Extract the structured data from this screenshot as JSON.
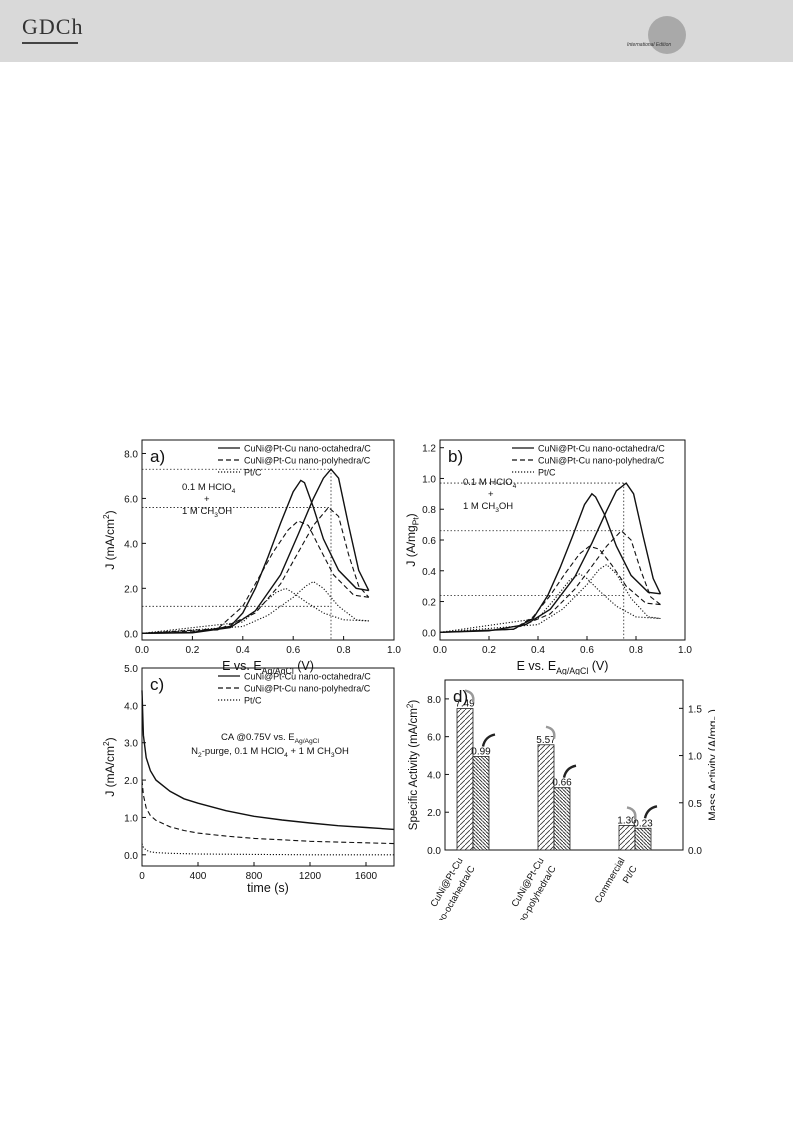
{
  "header": {
    "logo_text": "GDCh",
    "edition_text": "International Edition"
  },
  "chart_data": [
    {
      "type": "line",
      "panel_label": "a)",
      "xlabel": "E vs. E",
      "xlabel_sub": "Ag/AgCl",
      "xlabel_unit": "(V)",
      "ylabel": "J (mA/cm",
      "ylabel_sup": "2",
      "ylabel_end": ")",
      "xlim": [
        0.0,
        1.0
      ],
      "ylim": [
        -0.3,
        8.6
      ],
      "xticks": [
        "0.0",
        "0.2",
        "0.4",
        "0.6",
        "0.8",
        "1.0"
      ],
      "yticks": [
        "0.0",
        "2.0",
        "4.0",
        "6.0",
        "8.0"
      ],
      "annotation_lines": [
        "0.1 M HClO",
        "+",
        "1 M CH"
      ],
      "legend": [
        "CuNi@Pt-Cu nano-octahedra/C",
        "CuNi@Pt-Cu nano-polyhedra/C",
        "Pt/C"
      ],
      "ref_lines": {
        "y": [
          7.3,
          5.6,
          1.2
        ],
        "x": 0.75
      },
      "series": [
        {
          "name": "CuNi@Pt-Cu nano-octahedra/C",
          "style": "solid",
          "forward": [
            [
              0.0,
              0.0
            ],
            [
              0.2,
              0.02
            ],
            [
              0.35,
              0.25
            ],
            [
              0.45,
              1.0
            ],
            [
              0.55,
              2.6
            ],
            [
              0.62,
              4.4
            ],
            [
              0.68,
              6.0
            ],
            [
              0.72,
              6.9
            ],
            [
              0.75,
              7.3
            ],
            [
              0.78,
              6.9
            ],
            [
              0.82,
              4.8
            ],
            [
              0.86,
              2.8
            ],
            [
              0.9,
              1.9
            ]
          ],
          "backward": [
            [
              0.9,
              1.9
            ],
            [
              0.85,
              2.0
            ],
            [
              0.78,
              2.8
            ],
            [
              0.72,
              4.2
            ],
            [
              0.68,
              5.6
            ],
            [
              0.645,
              6.7
            ],
            [
              0.63,
              6.8
            ],
            [
              0.6,
              6.3
            ],
            [
              0.55,
              4.9
            ],
            [
              0.5,
              3.4
            ],
            [
              0.45,
              2.0
            ],
            [
              0.4,
              0.9
            ],
            [
              0.35,
              0.3
            ],
            [
              0.2,
              0.04
            ],
            [
              0.0,
              0.0
            ]
          ]
        },
        {
          "name": "CuNi@Pt-Cu nano-polyhedra/C",
          "style": "dashed",
          "forward": [
            [
              0.0,
              0.0
            ],
            [
              0.3,
              0.15
            ],
            [
              0.45,
              0.9
            ],
            [
              0.55,
              2.2
            ],
            [
              0.62,
              3.6
            ],
            [
              0.68,
              4.8
            ],
            [
              0.74,
              5.6
            ],
            [
              0.78,
              5.2
            ],
            [
              0.82,
              3.5
            ],
            [
              0.86,
              2.1
            ],
            [
              0.9,
              1.6
            ]
          ],
          "backward": [
            [
              0.9,
              1.6
            ],
            [
              0.84,
              1.7
            ],
            [
              0.76,
              2.6
            ],
            [
              0.7,
              3.9
            ],
            [
              0.66,
              4.8
            ],
            [
              0.62,
              5.0
            ],
            [
              0.58,
              4.6
            ],
            [
              0.52,
              3.6
            ],
            [
              0.46,
              2.4
            ],
            [
              0.4,
              1.2
            ],
            [
              0.3,
              0.2
            ],
            [
              0.0,
              0.0
            ]
          ]
        },
        {
          "name": "Pt/C",
          "style": "dotted",
          "forward": [
            [
              0.0,
              0.0
            ],
            [
              0.4,
              0.3
            ],
            [
              0.5,
              0.8
            ],
            [
              0.6,
              1.6
            ],
            [
              0.65,
              2.1
            ],
            [
              0.68,
              2.3
            ],
            [
              0.72,
              2.0
            ],
            [
              0.78,
              1.2
            ],
            [
              0.85,
              0.6
            ],
            [
              0.9,
              0.55
            ]
          ],
          "backward": [
            [
              0.9,
              0.55
            ],
            [
              0.8,
              0.6
            ],
            [
              0.72,
              0.9
            ],
            [
              0.65,
              1.4
            ],
            [
              0.6,
              1.8
            ],
            [
              0.57,
              2.0
            ],
            [
              0.53,
              1.8
            ],
            [
              0.47,
              1.2
            ],
            [
              0.4,
              0.5
            ],
            [
              0.0,
              0.0
            ]
          ]
        }
      ]
    },
    {
      "type": "line",
      "panel_label": "b)",
      "xlabel": "E vs. E",
      "xlabel_sub": "Ag/AgCl",
      "xlabel_unit": "(V)",
      "ylabel": "J (A/mg",
      "ylabel_sub": "Pt",
      "ylabel_end": ")",
      "xlim": [
        0.0,
        1.0
      ],
      "ylim": [
        -0.05,
        1.25
      ],
      "xticks": [
        "0.0",
        "0.2",
        "0.4",
        "0.6",
        "0.8",
        "1.0"
      ],
      "yticks": [
        "0.0",
        "0.2",
        "0.4",
        "0.6",
        "0.8",
        "1.0",
        "1.2"
      ],
      "annotation_lines": [
        "0.1 M HClO",
        "+",
        "1 M CH"
      ],
      "legend": [
        "CuNi@Pt-Cu nano-octahedra/C",
        "CuNi@Pt-Cu nano-polyhedra/C",
        "Pt/C"
      ],
      "ref_lines": {
        "y": [
          0.97,
          0.66,
          0.24
        ],
        "x": 0.75
      },
      "series": [
        {
          "name": "CuNi@Pt-Cu nano-octahedra/C",
          "style": "solid",
          "forward": [
            [
              0.0,
              0.0
            ],
            [
              0.2,
              0.01
            ],
            [
              0.35,
              0.05
            ],
            [
              0.45,
              0.15
            ],
            [
              0.55,
              0.36
            ],
            [
              0.62,
              0.58
            ],
            [
              0.68,
              0.79
            ],
            [
              0.72,
              0.92
            ],
            [
              0.76,
              0.97
            ],
            [
              0.79,
              0.9
            ],
            [
              0.83,
              0.62
            ],
            [
              0.87,
              0.35
            ],
            [
              0.9,
              0.25
            ]
          ],
          "backward": [
            [
              0.9,
              0.25
            ],
            [
              0.85,
              0.26
            ],
            [
              0.78,
              0.37
            ],
            [
              0.72,
              0.56
            ],
            [
              0.67,
              0.77
            ],
            [
              0.635,
              0.88
            ],
            [
              0.62,
              0.9
            ],
            [
              0.59,
              0.83
            ],
            [
              0.54,
              0.62
            ],
            [
              0.49,
              0.42
            ],
            [
              0.44,
              0.24
            ],
            [
              0.38,
              0.09
            ],
            [
              0.3,
              0.02
            ],
            [
              0.0,
              0.0
            ]
          ]
        },
        {
          "name": "CuNi@Pt-Cu nano-polyhedra/C",
          "style": "dashed",
          "forward": [
            [
              0.0,
              0.0
            ],
            [
              0.3,
              0.02
            ],
            [
              0.45,
              0.12
            ],
            [
              0.55,
              0.28
            ],
            [
              0.62,
              0.43
            ],
            [
              0.68,
              0.56
            ],
            [
              0.74,
              0.66
            ],
            [
              0.78,
              0.6
            ],
            [
              0.82,
              0.4
            ],
            [
              0.86,
              0.23
            ],
            [
              0.9,
              0.18
            ]
          ],
          "backward": [
            [
              0.9,
              0.18
            ],
            [
              0.84,
              0.19
            ],
            [
              0.76,
              0.3
            ],
            [
              0.7,
              0.44
            ],
            [
              0.65,
              0.54
            ],
            [
              0.61,
              0.56
            ],
            [
              0.57,
              0.51
            ],
            [
              0.51,
              0.38
            ],
            [
              0.45,
              0.24
            ],
            [
              0.38,
              0.1
            ],
            [
              0.3,
              0.02
            ],
            [
              0.0,
              0.0
            ]
          ]
        },
        {
          "name": "Pt/C",
          "style": "dotted",
          "forward": [
            [
              0.0,
              0.0
            ],
            [
              0.4,
              0.05
            ],
            [
              0.5,
              0.15
            ],
            [
              0.6,
              0.31
            ],
            [
              0.65,
              0.41
            ],
            [
              0.68,
              0.44
            ],
            [
              0.72,
              0.38
            ],
            [
              0.78,
              0.22
            ],
            [
              0.85,
              0.1
            ],
            [
              0.9,
              0.09
            ]
          ],
          "backward": [
            [
              0.9,
              0.09
            ],
            [
              0.8,
              0.1
            ],
            [
              0.72,
              0.17
            ],
            [
              0.65,
              0.27
            ],
            [
              0.6,
              0.35
            ],
            [
              0.57,
              0.38
            ],
            [
              0.53,
              0.34
            ],
            [
              0.47,
              0.22
            ],
            [
              0.4,
              0.09
            ],
            [
              0.0,
              0.0
            ]
          ]
        }
      ]
    },
    {
      "type": "line",
      "panel_label": "c)",
      "xlabel": "time (s)",
      "ylabel": "J (mA/cm",
      "ylabel_sup": "2",
      "ylabel_end": ")",
      "xlim": [
        0,
        1800
      ],
      "ylim": [
        -0.3,
        5.0
      ],
      "xticks": [
        "0",
        "400",
        "800",
        "1200",
        "1600"
      ],
      "yticks": [
        "0.0",
        "1.0",
        "2.0",
        "3.0",
        "4.0",
        "5.0"
      ],
      "annotation_lines": [
        "CA @0.75V vs.  E",
        "N",
        "-purge, 0.1 M HClO",
        "+ 1 M CH"
      ],
      "annotation_sub": "Ag/AgCl",
      "legend": [
        "CuNi@Pt-Cu nano-octahedra/C",
        "CuNi@Pt-Cu nano-polyhedra/C",
        "Pt/C"
      ],
      "series": [
        {
          "name": "CuNi@Pt-Cu nano-octahedra/C",
          "style": "solid",
          "points": [
            [
              0,
              4.4
            ],
            [
              10,
              3.2
            ],
            [
              30,
              2.6
            ],
            [
              60,
              2.25
            ],
            [
              100,
              2.0
            ],
            [
              200,
              1.7
            ],
            [
              300,
              1.5
            ],
            [
              400,
              1.38
            ],
            [
              600,
              1.18
            ],
            [
              800,
              1.03
            ],
            [
              1000,
              0.93
            ],
            [
              1200,
              0.85
            ],
            [
              1400,
              0.78
            ],
            [
              1600,
              0.73
            ],
            [
              1800,
              0.68
            ]
          ]
        },
        {
          "name": "CuNi@Pt-Cu nano-polyhedra/C",
          "style": "dashed",
          "points": [
            [
              0,
              2.0
            ],
            [
              10,
              1.6
            ],
            [
              30,
              1.25
            ],
            [
              60,
              1.05
            ],
            [
              100,
              0.92
            ],
            [
              200,
              0.75
            ],
            [
              300,
              0.65
            ],
            [
              400,
              0.58
            ],
            [
              600,
              0.5
            ],
            [
              800,
              0.44
            ],
            [
              1000,
              0.4
            ],
            [
              1200,
              0.36
            ],
            [
              1400,
              0.34
            ],
            [
              1600,
              0.32
            ],
            [
              1800,
              0.3
            ]
          ]
        },
        {
          "name": "Pt/C",
          "style": "dotted",
          "points": [
            [
              0,
              0.3
            ],
            [
              10,
              0.2
            ],
            [
              30,
              0.12
            ],
            [
              60,
              0.08
            ],
            [
              100,
              0.06
            ],
            [
              200,
              0.04
            ],
            [
              400,
              0.02
            ],
            [
              800,
              0.01
            ],
            [
              1200,
              0.0
            ],
            [
              1800,
              0.0
            ]
          ]
        }
      ]
    },
    {
      "type": "bar",
      "panel_label": "d)",
      "ylabel_left": "Specific Activity (mA/cm",
      "ylabel_left_sup": "2",
      "ylabel_left_end": ")",
      "ylabel_right": "Mass Activity (A/mg",
      "ylabel_right_sub": "Pt",
      "ylabel_right_end": ")",
      "ylim_left": [
        0.0,
        9.0
      ],
      "ylim_right": [
        0.0,
        1.8
      ],
      "yticks_left": [
        "0.0",
        "2.0",
        "4.0",
        "6.0",
        "8.0"
      ],
      "yticks_right": [
        "0.0",
        "0.5",
        "1.0",
        "1.5"
      ],
      "categories": [
        [
          "CuNi@Pt-Cu",
          "nano-octahedra/C"
        ],
        [
          "CuNi@Pt-Cu",
          "nano-polyhedra/C"
        ],
        [
          "Commercial",
          "Pt/C"
        ]
      ],
      "series": [
        {
          "axis": "left",
          "hatch": "diagonal-right",
          "values": [
            7.49,
            5.57,
            1.3
          ],
          "labels": [
            "7.49",
            "5.57",
            "1.30"
          ]
        },
        {
          "axis": "right",
          "hatch": "diagonal-left",
          "values": [
            0.99,
            0.66,
            0.23
          ],
          "labels": [
            "0.99",
            "0.66",
            "0.23"
          ]
        }
      ]
    }
  ],
  "subscripts": {
    "hclo4": "4",
    "ch3oh_3": "3",
    "ch3oh_tail": "OH",
    "n2": "2"
  }
}
